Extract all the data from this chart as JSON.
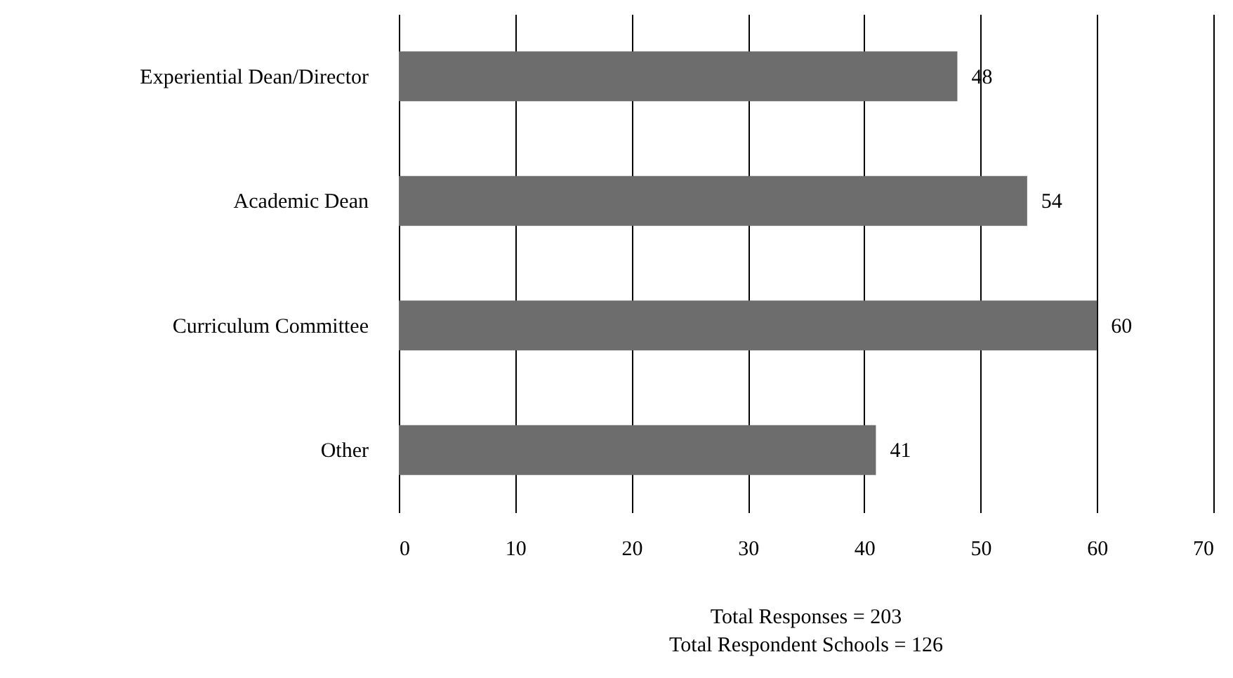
{
  "chart_data": {
    "type": "bar",
    "orientation": "horizontal",
    "categories": [
      "Experiential Dean/Director",
      "Academic Dean",
      "Curriculum Committee",
      "Other"
    ],
    "values": [
      48,
      54,
      60,
      41
    ],
    "color": "#6d6d6d",
    "data_labels": true,
    "grid": "x",
    "xlim": [
      0,
      70
    ],
    "xticks": [
      0,
      10,
      20,
      30,
      40,
      50,
      60,
      70
    ],
    "annotations": [
      "Total Responses = 203",
      "Total Respondent Schools = 126"
    ]
  }
}
